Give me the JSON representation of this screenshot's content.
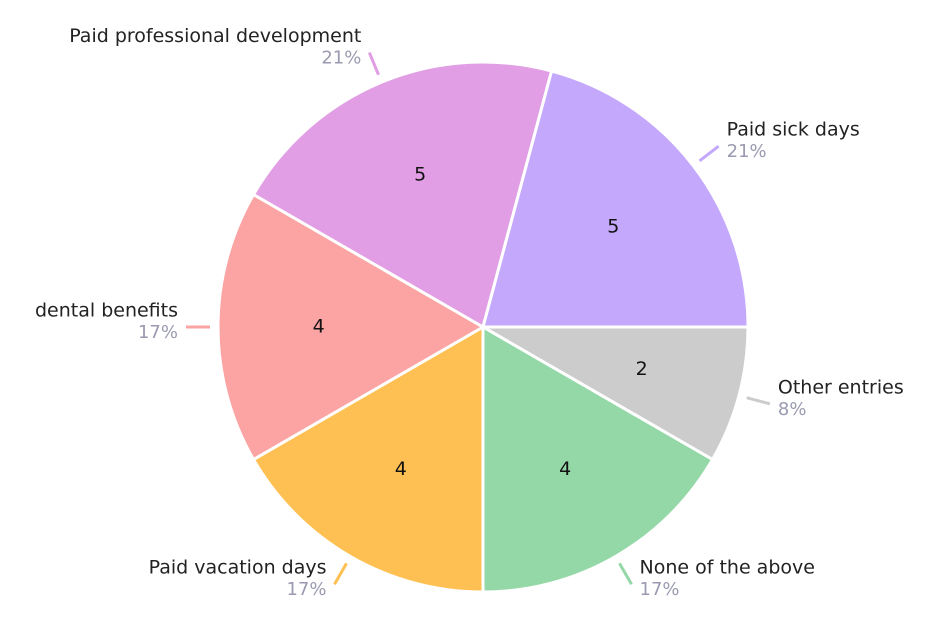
{
  "chart_data": {
    "type": "pie",
    "categories": [
      "Other entries",
      "None of the above",
      "Paid vacation days",
      "dental benefits",
      "Paid professional development",
      "Paid sick days"
    ],
    "values": [
      2,
      4,
      4,
      4,
      5,
      5
    ],
    "percent_values": [
      8,
      17,
      17,
      17,
      21,
      21
    ],
    "percent_labels": [
      "8%",
      "17%",
      "17%",
      "17%",
      "21%",
      "21%"
    ],
    "colors": [
      "#cccccc",
      "#94d8a8",
      "#fec053",
      "#fca3a3",
      "#e19ee4",
      "#c4a8fc"
    ]
  }
}
